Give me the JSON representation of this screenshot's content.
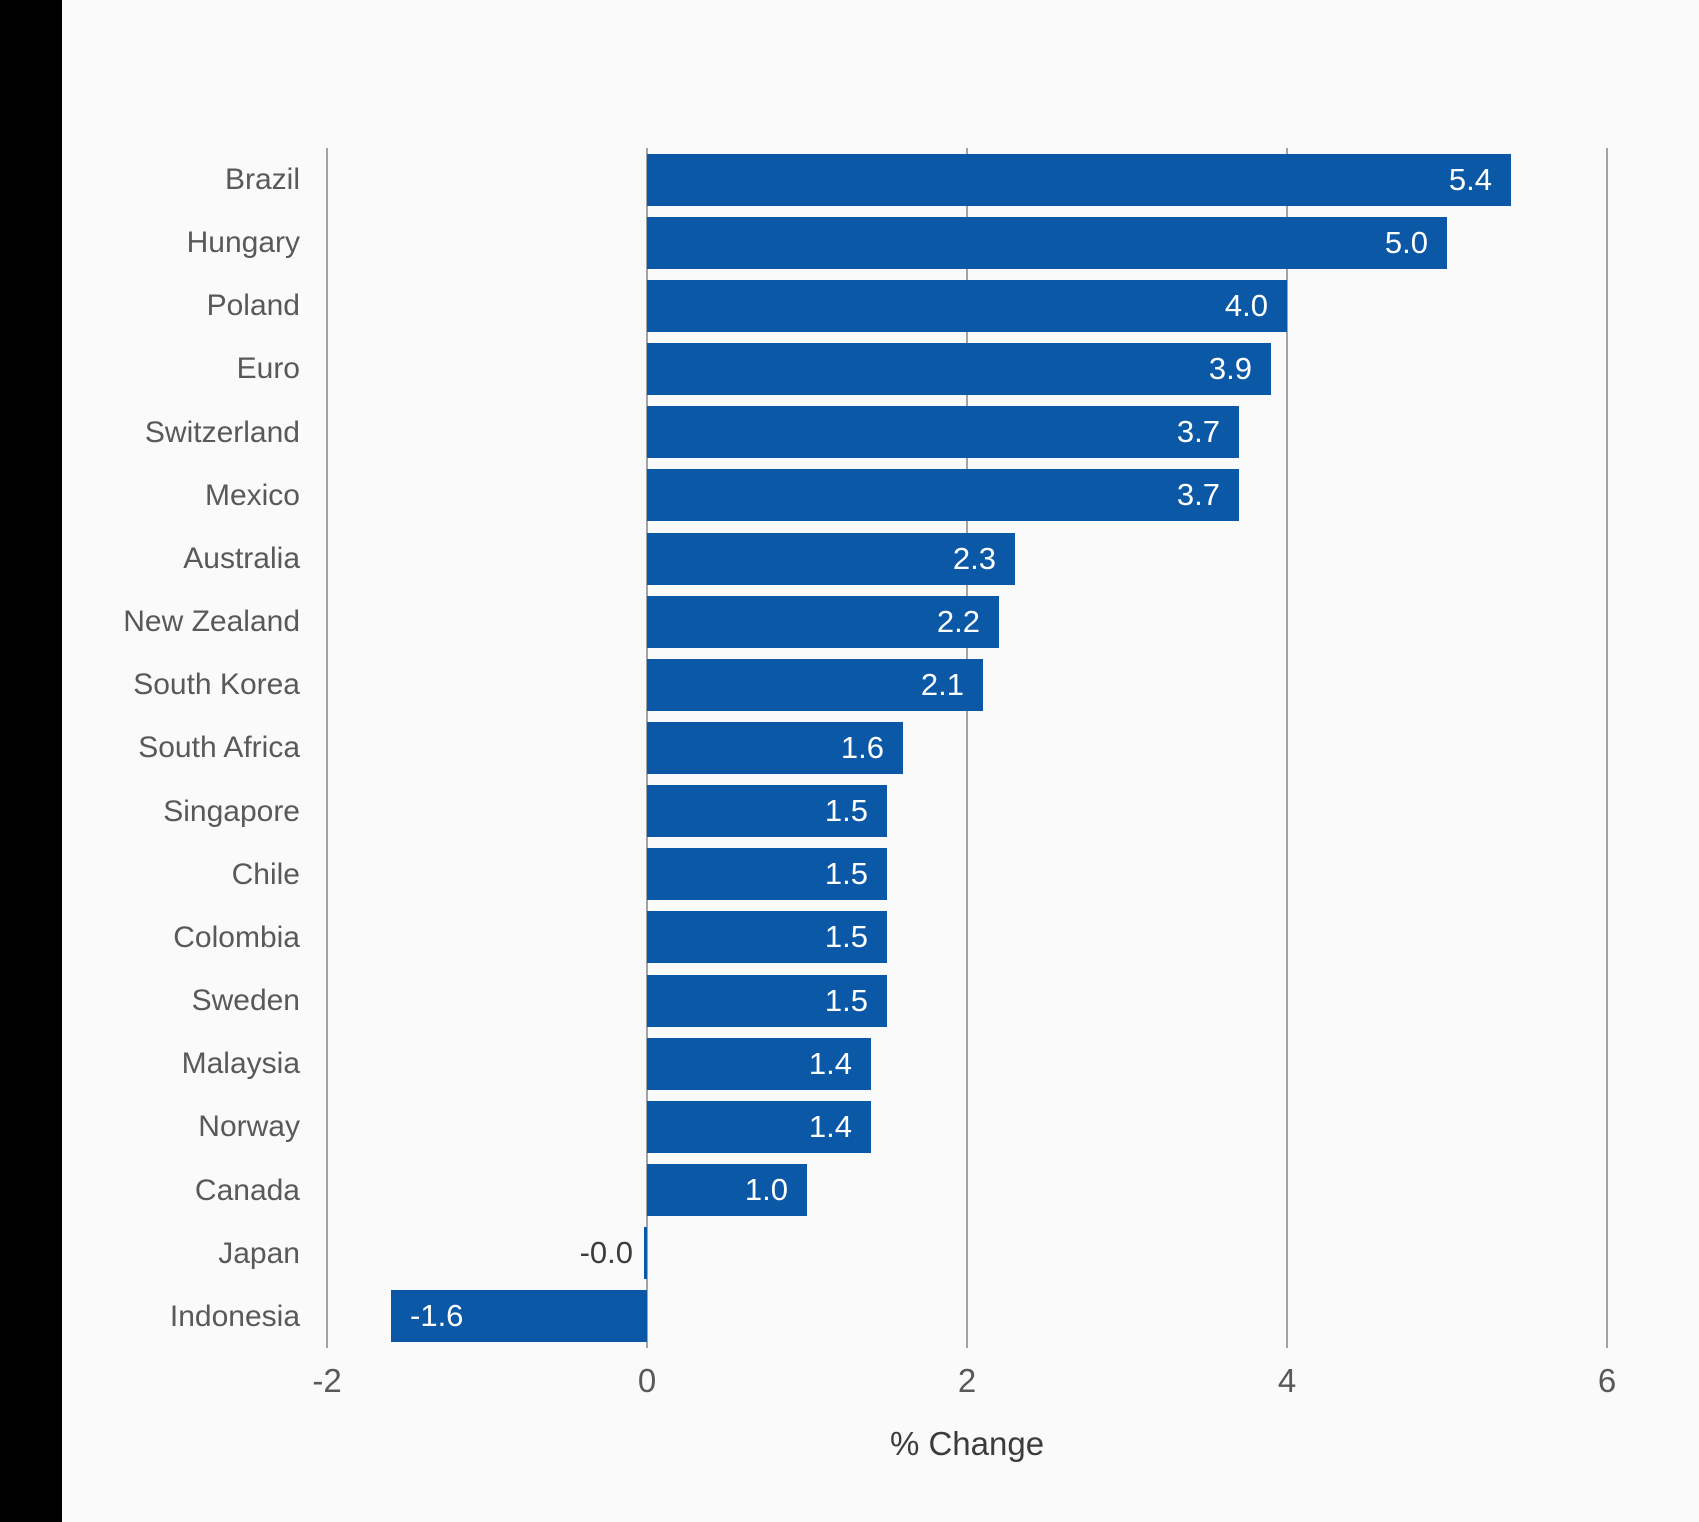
{
  "page": {
    "background_color": "#fafafa",
    "left_strip_color": "#000000"
  },
  "chart_data": {
    "type": "bar",
    "orientation": "horizontal",
    "title": "",
    "xlabel": "% Change",
    "ylabel": "",
    "xlim": [
      -2,
      6
    ],
    "grid": "vertical",
    "legend": "none",
    "categories": [
      "Brazil",
      "Hungary",
      "Poland",
      "Euro",
      "Switzerland",
      "Mexico",
      "Australia",
      "New Zealand",
      "South Korea",
      "South Africa",
      "Singapore",
      "Chile",
      "Colombia",
      "Sweden",
      "Malaysia",
      "Norway",
      "Canada",
      "Japan",
      "Indonesia"
    ],
    "values": [
      5.4,
      5.0,
      4.0,
      3.9,
      3.7,
      3.7,
      2.3,
      2.2,
      2.1,
      1.6,
      1.5,
      1.5,
      1.5,
      1.5,
      1.4,
      1.4,
      1.0,
      -0.0,
      -1.6
    ],
    "value_labels": [
      "5.4",
      "5.0",
      "4.0",
      "3.9",
      "3.7",
      "3.7",
      "2.3",
      "2.2",
      "2.1",
      "1.6",
      "1.5",
      "1.5",
      "1.5",
      "1.5",
      "1.4",
      "1.4",
      "1.0",
      "-0.0",
      "-1.6"
    ],
    "x_ticks": [
      -2,
      0,
      2,
      4,
      6
    ],
    "x_tick_labels": [
      "-2",
      "0",
      "2",
      "4",
      "6"
    ],
    "colors": {
      "bar": "#0b59a6",
      "gridline": "#a3a3a3",
      "category_label": "#595959",
      "tick_label": "#595959",
      "value_label_inside": "#ffffff",
      "value_label_outside": "#3c3c3c",
      "axis_title": "#3c3c3c"
    }
  }
}
